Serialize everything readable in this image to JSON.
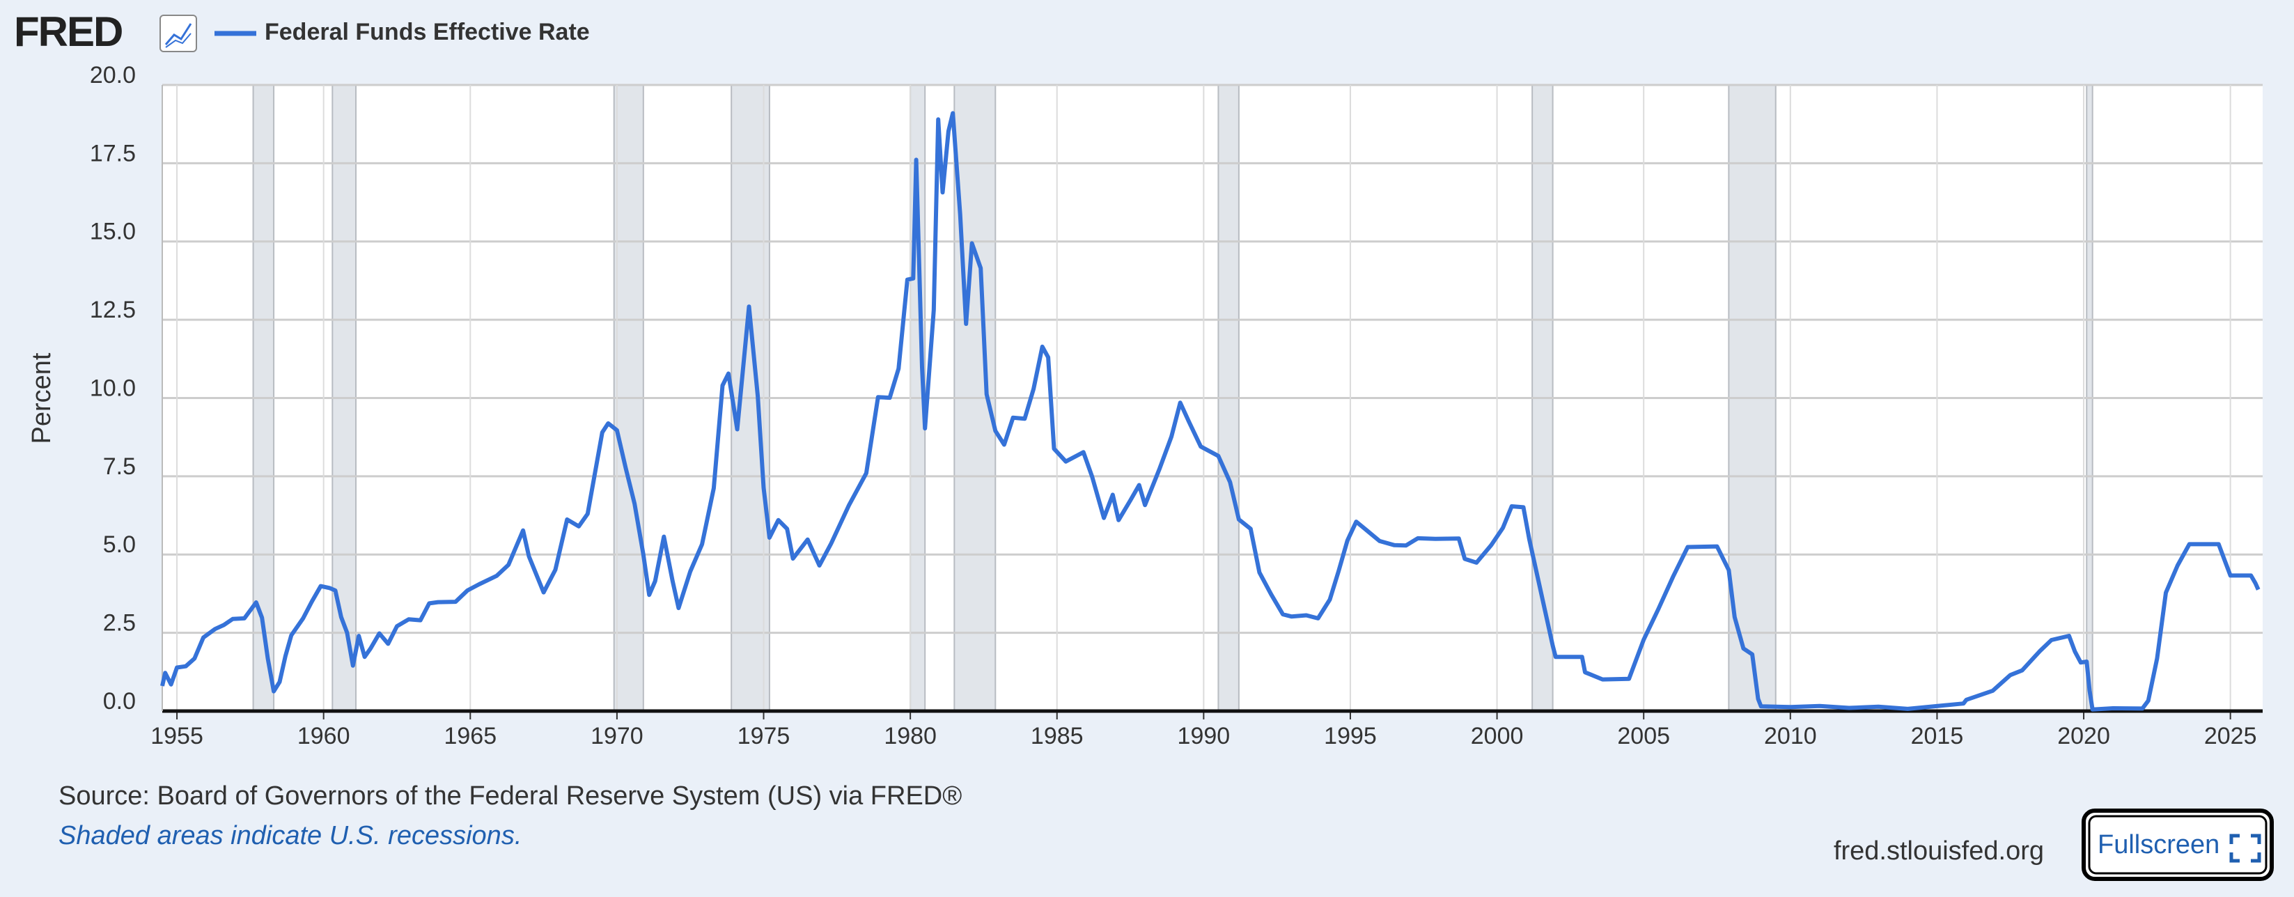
{
  "header": {
    "logo": "FRED"
  },
  "chart_data": {
    "type": "line",
    "y_label": "Percent",
    "x": [
      1954.5,
      1954.6,
      1954.8,
      1955.0,
      1955.3,
      1955.6,
      1955.9,
      1956.3,
      1956.6,
      1956.9,
      1957.3,
      1957.7,
      1957.9,
      1958.1,
      1958.3,
      1958.5,
      1958.7,
      1958.9,
      1959.3,
      1959.6,
      1959.9,
      1960.2,
      1960.4,
      1960.6,
      1960.8,
      1961.0,
      1961.2,
      1961.4,
      1961.6,
      1961.9,
      1962.2,
      1962.5,
      1962.9,
      1963.3,
      1963.6,
      1963.9,
      1964.5,
      1964.9,
      1965.3,
      1965.9,
      1966.3,
      1966.8,
      1967.0,
      1967.5,
      1967.9,
      1968.3,
      1968.7,
      1969.0,
      1969.5,
      1969.7,
      1970.0,
      1970.3,
      1970.6,
      1970.9,
      1971.1,
      1971.3,
      1971.6,
      1971.9,
      1972.1,
      1972.5,
      1972.9,
      1973.3,
      1973.6,
      1973.8,
      1974.1,
      1974.5,
      1974.8,
      1975.0,
      1975.2,
      1975.5,
      1975.8,
      1976.0,
      1976.5,
      1976.9,
      1977.3,
      1977.9,
      1978.5,
      1978.9,
      1979.3,
      1979.6,
      1979.9,
      1980.1,
      1980.2,
      1980.4,
      1980.5,
      1980.8,
      1980.95,
      1981.1,
      1981.3,
      1981.45,
      1981.7,
      1981.9,
      1982.1,
      1982.4,
      1982.6,
      1982.9,
      1983.2,
      1983.5,
      1983.9,
      1984.2,
      1984.5,
      1984.7,
      1984.9,
      1985.3,
      1985.9,
      1986.2,
      1986.6,
      1986.9,
      1987.1,
      1987.5,
      1987.8,
      1988.0,
      1988.5,
      1988.9,
      1989.2,
      1989.5,
      1989.9,
      1990.5,
      1990.9,
      1991.2,
      1991.6,
      1991.9,
      1992.3,
      1992.7,
      1993.0,
      1993.5,
      1993.9,
      1994.3,
      1994.6,
      1994.9,
      1995.2,
      1995.6,
      1996.0,
      1996.5,
      1996.9,
      1997.3,
      1997.9,
      1998.7,
      1998.9,
      1999.3,
      1999.8,
      2000.2,
      2000.5,
      2000.9,
      2001.1,
      2001.4,
      2001.9,
      2002.0,
      2002.9,
      2003.0,
      2003.6,
      2004.5,
      2005.0,
      2005.5,
      2006.0,
      2006.5,
      2007.5,
      2007.9,
      2008.1,
      2008.4,
      2008.7,
      2008.9,
      2009.0,
      2010.0,
      2011.0,
      2012.0,
      2013.0,
      2014.0,
      2015.9,
      2016.0,
      2016.9,
      2017.5,
      2017.9,
      2018.5,
      2018.9,
      2019.5,
      2019.7,
      2019.9,
      2020.1,
      2020.2,
      2020.3,
      2021.0,
      2022.0,
      2022.2,
      2022.5,
      2022.8,
      2023.2,
      2023.6,
      2024.6,
      2024.8,
      2025.0,
      2025.7,
      2025.85,
      2025.95
    ],
    "series": [
      {
        "name": "Federal Funds Effective Rate",
        "color": "#3572d8",
        "values": [
          0.8,
          1.22,
          0.85,
          1.39,
          1.43,
          1.68,
          2.35,
          2.62,
          2.75,
          2.94,
          2.96,
          3.47,
          2.98,
          1.67,
          0.63,
          0.93,
          1.76,
          2.42,
          2.96,
          3.5,
          3.99,
          3.93,
          3.85,
          3.0,
          2.5,
          1.45,
          2.4,
          1.73,
          2.0,
          2.48,
          2.15,
          2.71,
          2.93,
          2.9,
          3.44,
          3.48,
          3.49,
          3.85,
          4.05,
          4.32,
          4.67,
          5.77,
          4.94,
          3.79,
          4.51,
          6.12,
          5.9,
          6.3,
          8.9,
          9.19,
          8.97,
          7.76,
          6.62,
          5.0,
          3.71,
          4.15,
          5.57,
          4.14,
          3.29,
          4.46,
          5.33,
          7.12,
          10.4,
          10.78,
          9.0,
          12.92,
          10.06,
          7.13,
          5.54,
          6.1,
          5.82,
          4.87,
          5.48,
          4.65,
          5.35,
          6.56,
          7.6,
          10.03,
          10.01,
          10.94,
          13.78,
          13.82,
          17.61,
          10.98,
          9.03,
          12.81,
          18.9,
          16.57,
          18.52,
          19.1,
          15.87,
          12.37,
          14.94,
          14.15,
          10.12,
          8.95,
          8.51,
          9.37,
          9.34,
          10.29,
          11.64,
          11.3,
          8.38,
          7.97,
          8.27,
          7.48,
          6.17,
          6.91,
          6.1,
          6.73,
          7.22,
          6.58,
          7.75,
          8.76,
          9.85,
          9.24,
          8.45,
          8.15,
          7.31,
          6.12,
          5.82,
          4.43,
          3.73,
          3.09,
          3.02,
          3.06,
          2.96,
          3.56,
          4.47,
          5.45,
          6.05,
          5.74,
          5.43,
          5.3,
          5.29,
          5.52,
          5.5,
          5.51,
          4.86,
          4.74,
          5.3,
          5.85,
          6.54,
          6.51,
          5.49,
          4.21,
          2.09,
          1.73,
          1.73,
          1.24,
          1.01,
          1.03,
          2.28,
          3.26,
          4.29,
          5.24,
          5.26,
          4.5,
          3.0,
          2.0,
          1.81,
          0.39,
          0.15,
          0.13,
          0.16,
          0.1,
          0.14,
          0.07,
          0.24,
          0.36,
          0.65,
          1.15,
          1.3,
          1.91,
          2.27,
          2.4,
          1.9,
          1.55,
          1.58,
          0.65,
          0.05,
          0.09,
          0.08,
          0.33,
          1.68,
          3.78,
          4.65,
          5.33,
          5.33,
          4.83,
          4.33,
          4.33,
          4.09,
          3.88
        ]
      }
    ],
    "recessions": [
      [
        1957.6,
        1958.3
      ],
      [
        1960.3,
        1961.1
      ],
      [
        1969.9,
        1970.9
      ],
      [
        1973.9,
        1975.2
      ],
      [
        1980.0,
        1980.5
      ],
      [
        1981.5,
        1982.9
      ],
      [
        1990.5,
        1991.2
      ],
      [
        2001.2,
        2001.9
      ],
      [
        2007.9,
        2009.5
      ],
      [
        2020.1,
        2020.3
      ]
    ],
    "xlim": [
      1954.5,
      2026.1
    ],
    "xticks": [
      1955,
      1960,
      1965,
      1970,
      1975,
      1980,
      1985,
      1990,
      1995,
      2000,
      2005,
      2010,
      2015,
      2020,
      2025
    ],
    "ylim": [
      0,
      20
    ],
    "yticks": [
      {
        "value": 0,
        "label": "0.0"
      },
      2.5,
      {
        "value": 5,
        "label": "5.0"
      },
      7.5,
      {
        "value": 10,
        "label": "10.0"
      },
      12.5,
      {
        "value": 15,
        "label": "15.0"
      },
      17.5,
      {
        "value": 20,
        "label": "20.0"
      }
    ],
    "grid": true,
    "source": "Source: Board of Governors of the Federal Reserve System (US) via FRED®",
    "note": "Shaded areas indicate U.S. recessions."
  },
  "footer": {
    "site": "fred.stlouisfed.org",
    "button": "Fullscreen"
  }
}
